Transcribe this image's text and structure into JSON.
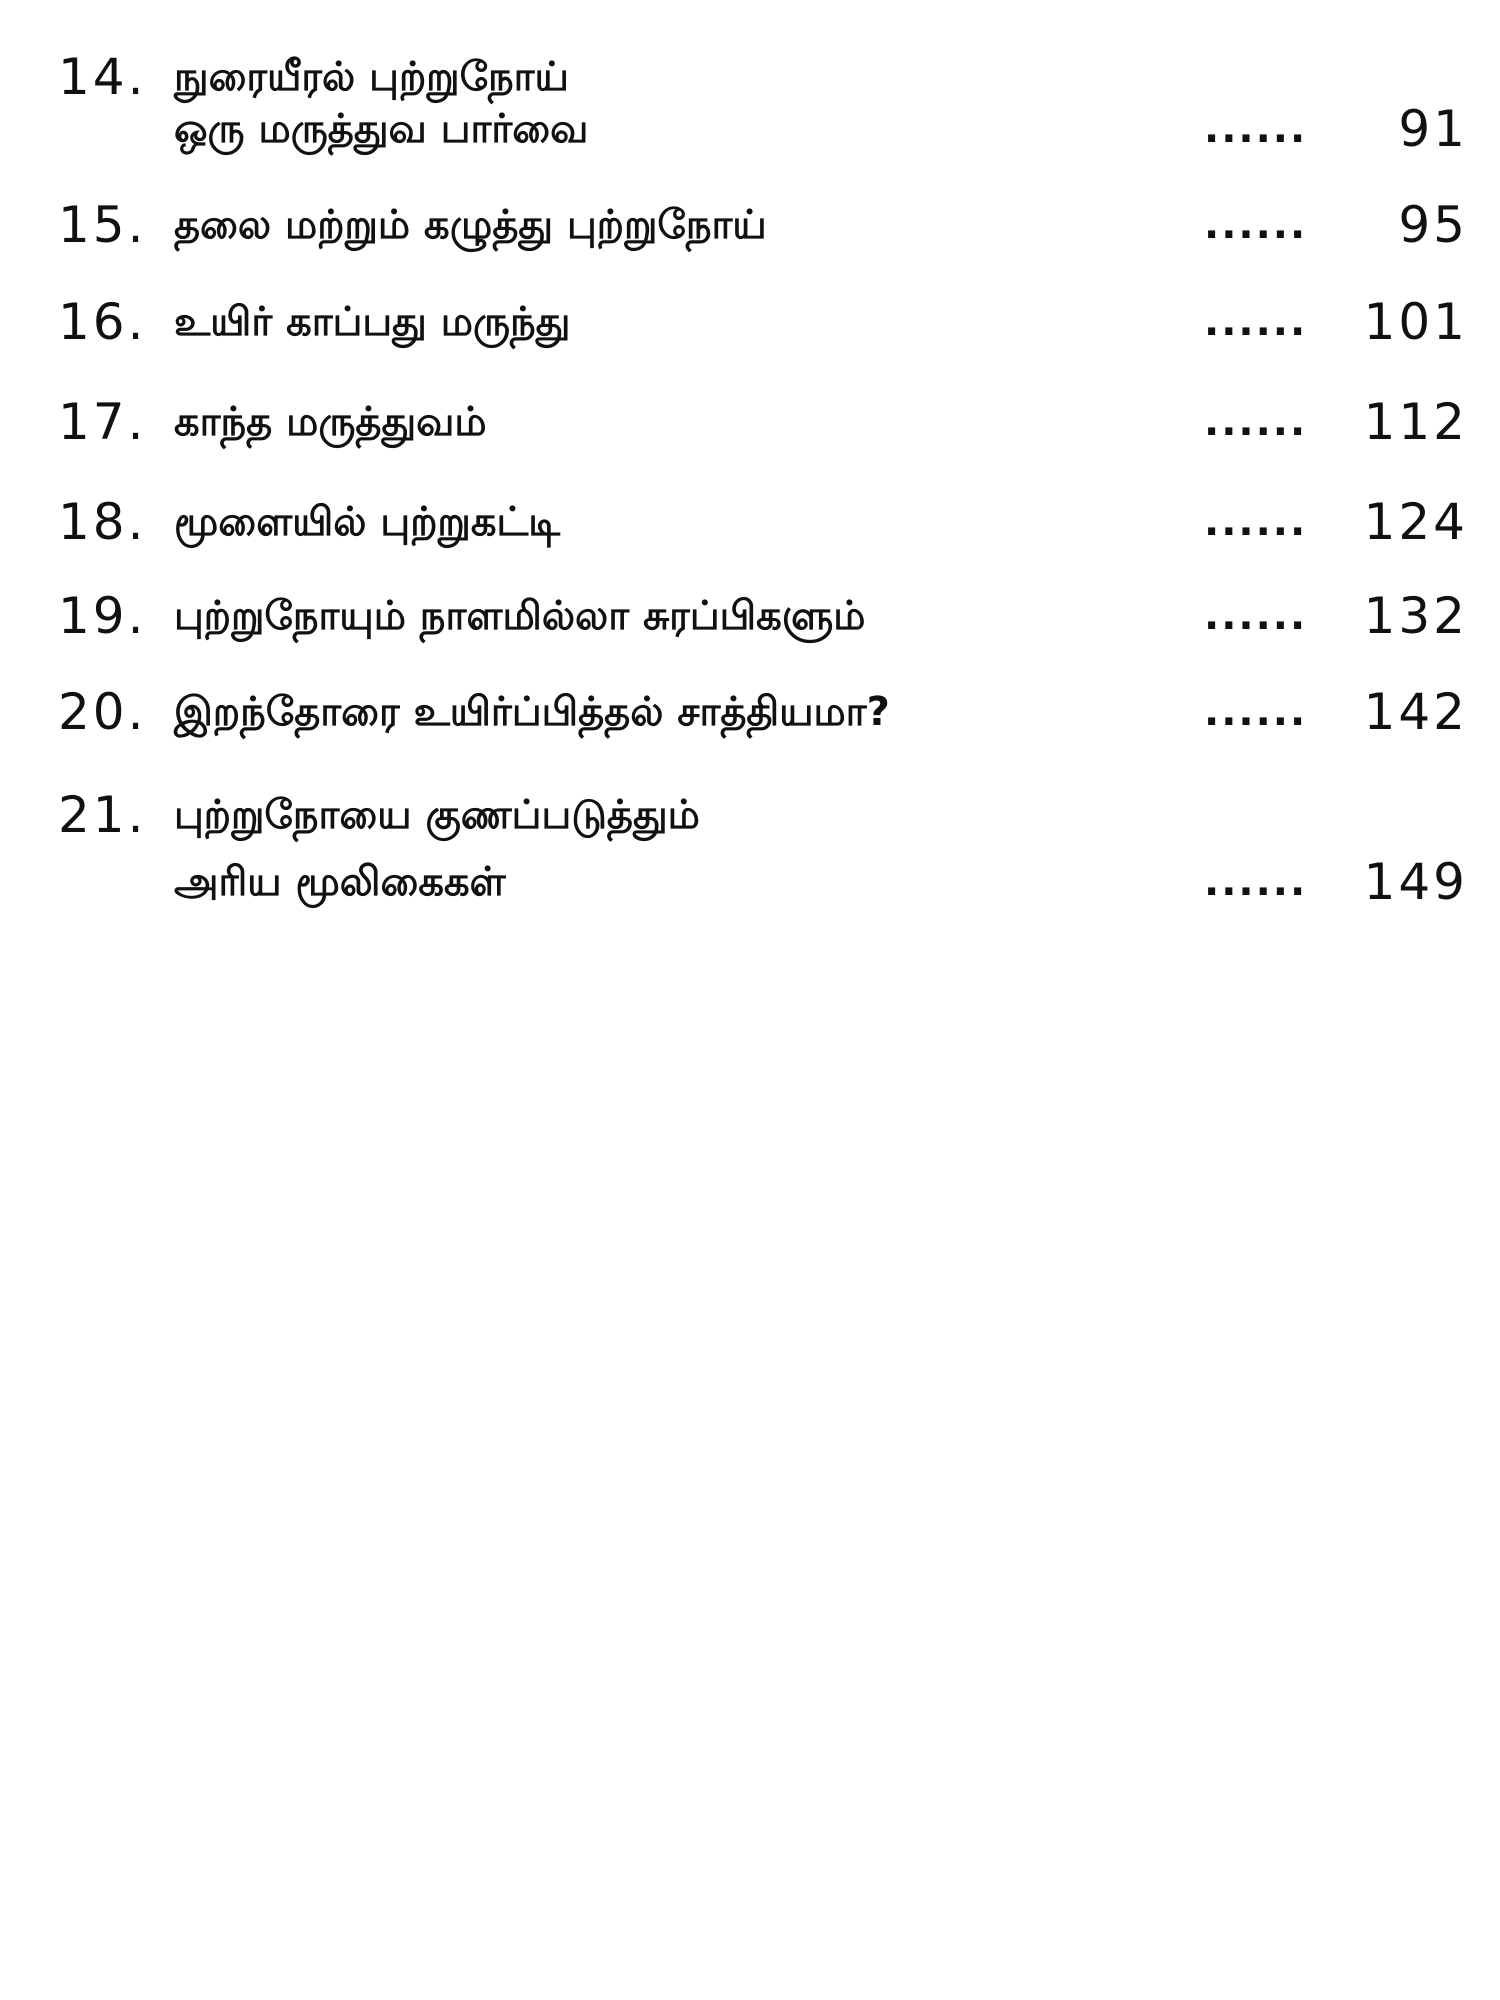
{
  "toc": {
    "leader": "......",
    "entries": [
      {
        "number": "14.",
        "lines": [
          "நுரையீரல் புற்றுநோய்",
          "ஒரு மருத்துவ பார்வை"
        ],
        "page": "91"
      },
      {
        "number": "15.",
        "lines": [
          "தலை மற்றும் கழுத்து புற்றுநோய்"
        ],
        "page": "95"
      },
      {
        "number": "16.",
        "lines": [
          "உயிர் காப்பது மருந்து"
        ],
        "page": "101"
      },
      {
        "number": "17.",
        "lines": [
          "காந்த மருத்துவம்"
        ],
        "page": "112"
      },
      {
        "number": "18.",
        "lines": [
          "மூளையில் புற்றுகட்டி"
        ],
        "page": "124"
      },
      {
        "number": "19.",
        "lines": [
          "புற்றுநோயும் நாளமில்லா சுரப்பிகளும்"
        ],
        "page": "132"
      },
      {
        "number": "20.",
        "lines": [
          "இறந்தோரை உயிர்ப்பித்தல் சாத்தியமா?"
        ],
        "page": "142"
      },
      {
        "number": "21.",
        "lines": [
          "புற்றுநோயை குணப்படுத்தும்",
          "அரிய மூலிகைகள்"
        ],
        "page": "149"
      }
    ]
  }
}
